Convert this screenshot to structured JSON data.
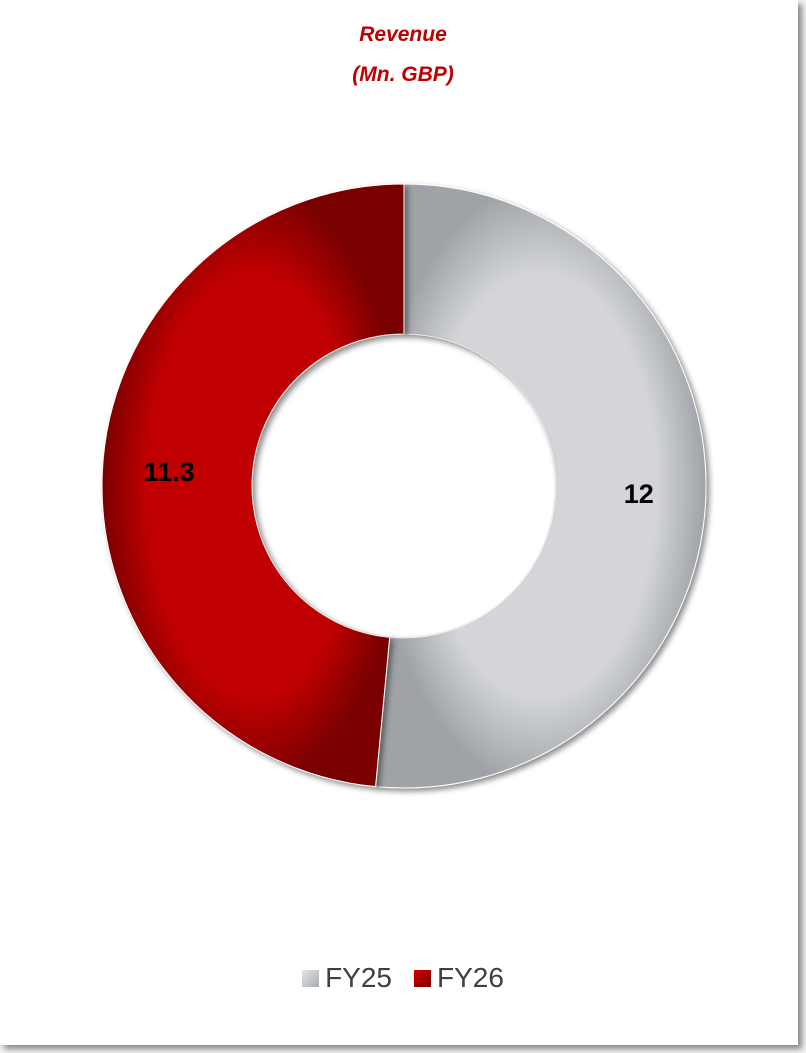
{
  "chart_data": {
    "type": "pie",
    "variant": "donut",
    "title": "Revenue",
    "subtitle": "(Mn. GBP)",
    "categories": [
      "FY25",
      "FY26"
    ],
    "values": [
      12,
      11.3
    ],
    "data_labels": [
      "12",
      "11.3"
    ],
    "colors": [
      "#d3d5d9",
      "#c00000"
    ],
    "legend_position": "bottom"
  }
}
